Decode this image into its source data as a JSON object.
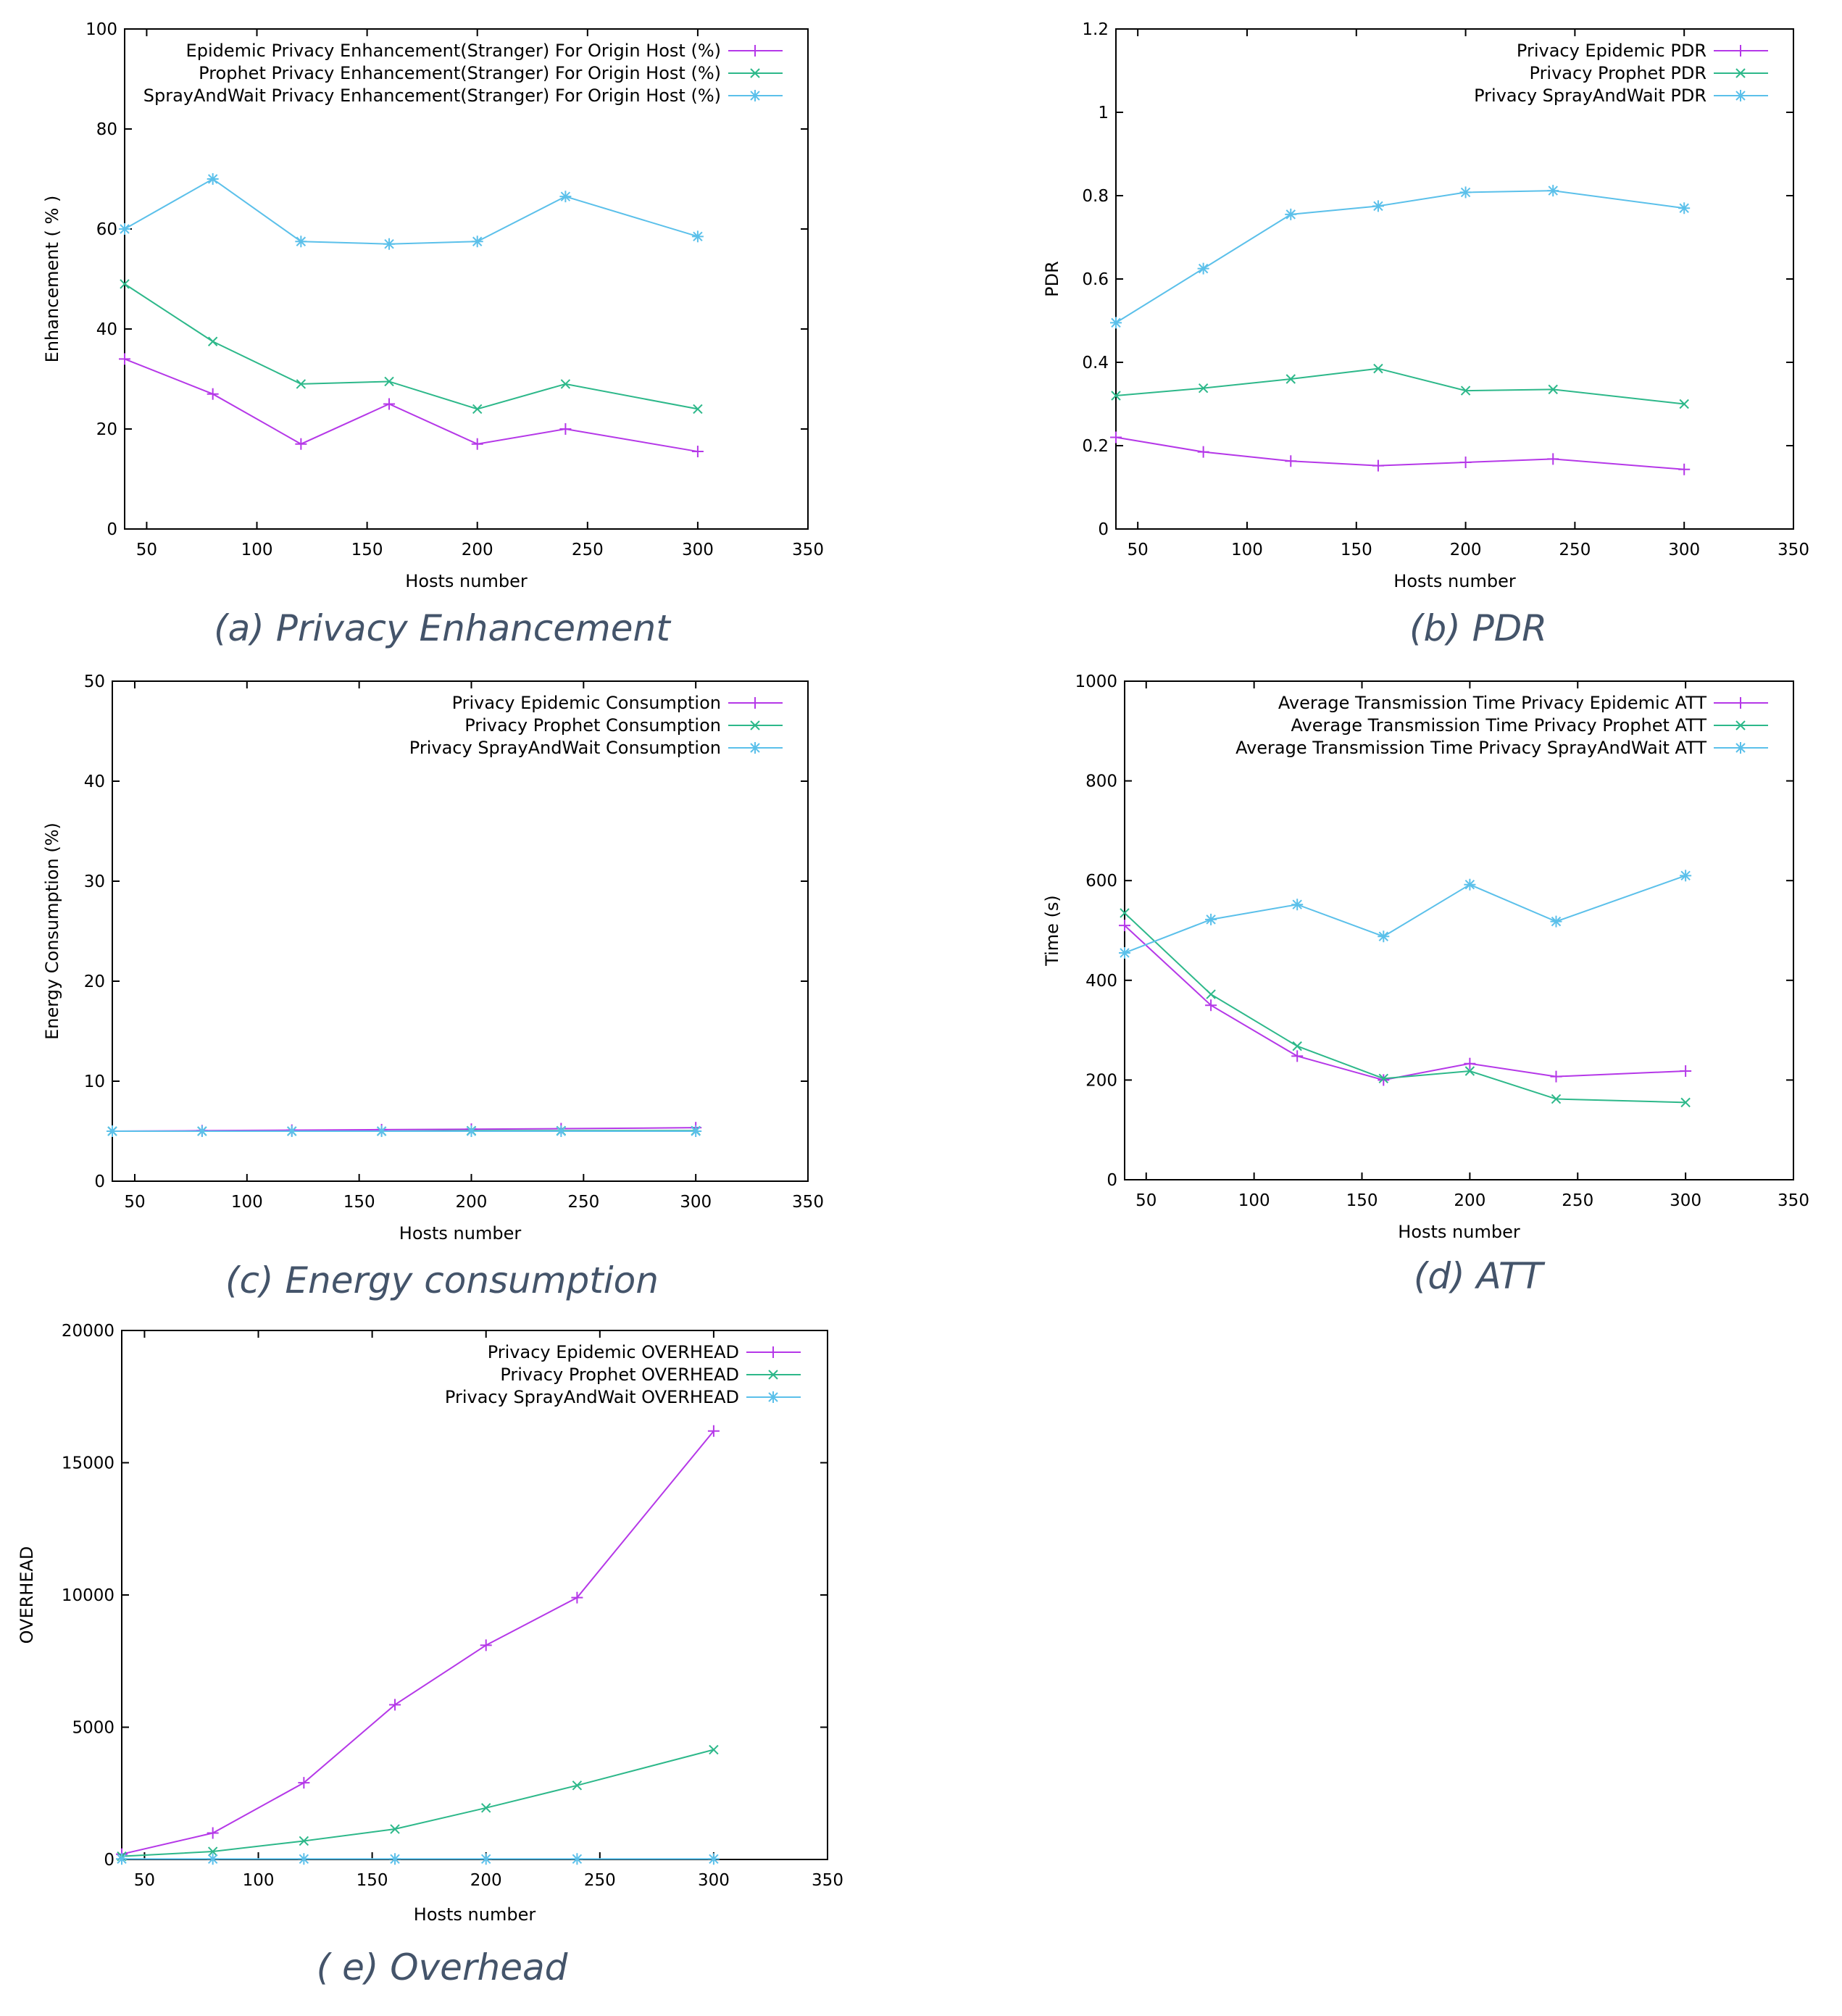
{
  "chart_data": [
    {
      "id": "a",
      "type": "line",
      "caption": "(a) Privacy Enhancement",
      "xlabel": "Hosts number",
      "ylabel": "Enhancement ( % )",
      "xlim": [
        40,
        350
      ],
      "ylim": [
        0,
        100
      ],
      "xticks": [
        50,
        100,
        150,
        200,
        250,
        300,
        350
      ],
      "yticks": [
        0,
        20,
        40,
        60,
        80,
        100
      ],
      "x": [
        40,
        80,
        120,
        160,
        200,
        240,
        300
      ],
      "legend_position": "top-right",
      "series": [
        {
          "name": "Epidemic Privacy Enhancement(Stranger) For Origin Host (%)",
          "color": "#b538e8",
          "marker": "+",
          "values": [
            34,
            27,
            17,
            25,
            17,
            20,
            15.5
          ]
        },
        {
          "name": "Prophet  Privacy Enhancement(Stranger) For Origin Host (%)",
          "color": "#2db88a",
          "marker": "x",
          "values": [
            49,
            37.5,
            29,
            29.5,
            24,
            29,
            24
          ]
        },
        {
          "name": "SprayAndWait  Privacy Enhancement(Stranger) For Origin Host (%)",
          "color": "#5bc0ea",
          "marker": "*",
          "values": [
            60,
            70,
            57.5,
            57,
            57.5,
            66.5,
            58.5
          ]
        }
      ]
    },
    {
      "id": "b",
      "type": "line",
      "caption": "(b) PDR",
      "xlabel": "Hosts number",
      "ylabel": "PDR",
      "xlim": [
        40,
        350
      ],
      "ylim": [
        0,
        1.2
      ],
      "xticks": [
        50,
        100,
        150,
        200,
        250,
        300,
        350
      ],
      "yticks": [
        0,
        0.2,
        0.4,
        0.6,
        0.8,
        1,
        1.2
      ],
      "x": [
        40,
        80,
        120,
        160,
        200,
        240,
        300
      ],
      "legend_position": "top-right",
      "series": [
        {
          "name": "Privacy Epidemic PDR",
          "color": "#b538e8",
          "marker": "+",
          "values": [
            0.22,
            0.185,
            0.163,
            0.152,
            0.16,
            0.168,
            0.143
          ]
        },
        {
          "name": "Privacy Prophet PDR",
          "color": "#2db88a",
          "marker": "x",
          "values": [
            0.32,
            0.338,
            0.36,
            0.385,
            0.332,
            0.335,
            0.3
          ]
        },
        {
          "name": "Privacy SprayAndWait PDR",
          "color": "#5bc0ea",
          "marker": "*",
          "values": [
            0.495,
            0.625,
            0.755,
            0.775,
            0.808,
            0.812,
            0.77
          ]
        }
      ]
    },
    {
      "id": "c",
      "type": "line",
      "caption": "(c) Energy consumption",
      "xlabel": "Hosts number",
      "ylabel": "Energy Consumption (%)",
      "xlim": [
        40,
        350
      ],
      "ylim": [
        0,
        50
      ],
      "xticks": [
        50,
        100,
        150,
        200,
        250,
        300,
        350
      ],
      "yticks": [
        0,
        10,
        20,
        30,
        40,
        50
      ],
      "x": [
        40,
        80,
        120,
        160,
        200,
        240,
        300
      ],
      "legend_position": "top-right",
      "series": [
        {
          "name": "Privacy Epidemic Consumption",
          "color": "#b538e8",
          "marker": "+",
          "values": [
            5,
            5.05,
            5.1,
            5.15,
            5.2,
            5.25,
            5.35
          ]
        },
        {
          "name": "Privacy Prophet Consumption",
          "color": "#2db88a",
          "marker": "x",
          "values": [
            5,
            5,
            5,
            5,
            5.05,
            5.05,
            5.05
          ]
        },
        {
          "name": "Privacy SprayAndWait Consumption",
          "color": "#5bc0ea",
          "marker": "*",
          "values": [
            5,
            5,
            5,
            5,
            5,
            5,
            5
          ]
        }
      ]
    },
    {
      "id": "d",
      "type": "line",
      "caption": "(d) ATT",
      "xlabel": "Hosts number",
      "ylabel": "Time (s)",
      "xlim": [
        40,
        350
      ],
      "ylim": [
        0,
        1000
      ],
      "xticks": [
        50,
        100,
        150,
        200,
        250,
        300,
        350
      ],
      "yticks": [
        0,
        200,
        400,
        600,
        800,
        1000
      ],
      "x": [
        40,
        80,
        120,
        160,
        200,
        240,
        300
      ],
      "legend_position": "top-right",
      "series": [
        {
          "name": "Average Transmission Time Privacy Epidemic ATT",
          "color": "#b538e8",
          "marker": "+",
          "values": [
            510,
            350,
            248,
            200,
            233,
            207,
            218
          ]
        },
        {
          "name": "Average Transmission Time Privacy Prophet ATT",
          "color": "#2db88a",
          "marker": "x",
          "values": [
            535,
            372,
            268,
            203,
            218,
            162,
            155
          ]
        },
        {
          "name": "Average Transmission Time Privacy SprayAndWait ATT",
          "color": "#5bc0ea",
          "marker": "*",
          "values": [
            455,
            522,
            552,
            488,
            592,
            518,
            610
          ]
        }
      ]
    },
    {
      "id": "e",
      "type": "line",
      "caption": "( e) Overhead",
      "xlabel": "Hosts number",
      "ylabel": "OVERHEAD",
      "xlim": [
        40,
        350
      ],
      "ylim": [
        0,
        20000
      ],
      "xticks": [
        50,
        100,
        150,
        200,
        250,
        300,
        350
      ],
      "yticks": [
        0,
        5000,
        10000,
        15000,
        20000
      ],
      "x": [
        40,
        80,
        120,
        160,
        200,
        240,
        300
      ],
      "legend_position": "top-right",
      "series": [
        {
          "name": "Privacy Epidemic OVERHEAD",
          "color": "#b538e8",
          "marker": "+",
          "values": [
            200,
            1000,
            2900,
            5850,
            8100,
            9900,
            16200
          ]
        },
        {
          "name": "Privacy Prophet OVERHEAD",
          "color": "#2db88a",
          "marker": "x",
          "values": [
            120,
            300,
            700,
            1150,
            1950,
            2800,
            4150
          ]
        },
        {
          "name": "Privacy SprayAndWait OVERHEAD",
          "color": "#5bc0ea",
          "marker": "*",
          "values": [
            20,
            20,
            20,
            20,
            20,
            20,
            20
          ]
        }
      ]
    }
  ]
}
